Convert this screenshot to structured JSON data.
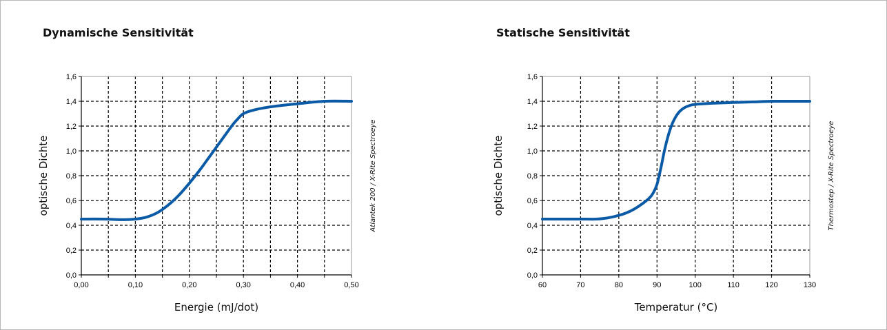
{
  "colors": {
    "line": "#0a5aa6",
    "grid": "#000000",
    "border": "#b9b9b9"
  },
  "chart_data": [
    {
      "type": "line",
      "title": "Dynamische Sensitivität",
      "xlabel": "Energie (mJ/dot)",
      "ylabel": "optische Dichte",
      "side_note": "Atlantek 200 / X-Rite Spectroeye",
      "xlim": [
        0,
        0.5
      ],
      "ylim": [
        0,
        1.6
      ],
      "xticks": [
        0,
        0.05,
        0.1,
        0.15,
        0.2,
        0.25,
        0.3,
        0.35,
        0.4,
        0.45,
        0.5
      ],
      "xtick_labels": [
        "0,00",
        "",
        "0,10",
        "",
        "0,20",
        "",
        "0,30",
        "",
        "0,40",
        "",
        "0,50"
      ],
      "yticks": [
        0,
        0.2,
        0.4,
        0.6,
        0.8,
        1.0,
        1.2,
        1.4,
        1.6
      ],
      "ytick_labels": [
        "0,0",
        "0,2",
        "0,4",
        "0,6",
        "0,8",
        "1,0",
        "1,2",
        "1,4",
        "1,6"
      ],
      "grid": true,
      "series": [
        {
          "x": [
            0.0,
            0.04,
            0.08,
            0.1,
            0.12,
            0.14,
            0.16,
            0.18,
            0.2,
            0.22,
            0.24,
            0.26,
            0.28,
            0.29,
            0.3,
            0.32,
            0.35,
            0.4,
            0.45,
            0.5
          ],
          "y": [
            0.45,
            0.45,
            0.445,
            0.45,
            0.465,
            0.5,
            0.56,
            0.64,
            0.74,
            0.85,
            0.97,
            1.09,
            1.21,
            1.26,
            1.3,
            1.33,
            1.355,
            1.38,
            1.4,
            1.4
          ]
        }
      ]
    },
    {
      "type": "line",
      "title": "Statische Sensitivität",
      "xlabel": "Temperatur (°C)",
      "ylabel": "optische Dichte",
      "side_note": "Thermostep / X-Rite Spectroeye",
      "xlim": [
        60,
        130
      ],
      "ylim": [
        0,
        1.6
      ],
      "xticks": [
        60,
        70,
        80,
        90,
        100,
        110,
        120,
        130
      ],
      "xtick_labels": [
        "60",
        "70",
        "80",
        "90",
        "100",
        "110",
        "120",
        "130"
      ],
      "yticks": [
        0,
        0.2,
        0.4,
        0.6,
        0.8,
        1.0,
        1.2,
        1.4,
        1.6
      ],
      "ytick_labels": [
        "0,0",
        "0,2",
        "0,4",
        "0,6",
        "0,8",
        "1,0",
        "1,2",
        "1,4",
        "1,6"
      ],
      "grid": true,
      "series": [
        {
          "x": [
            60,
            65,
            70,
            74,
            76,
            78,
            80,
            82,
            84,
            86,
            88,
            89,
            90,
            91,
            92,
            93,
            94,
            95,
            96,
            97,
            98,
            99,
            100,
            102,
            105,
            110,
            115,
            120,
            125,
            130
          ],
          "y": [
            0.45,
            0.45,
            0.45,
            0.45,
            0.455,
            0.465,
            0.48,
            0.5,
            0.53,
            0.57,
            0.62,
            0.66,
            0.73,
            0.86,
            1.01,
            1.13,
            1.22,
            1.28,
            1.32,
            1.345,
            1.36,
            1.37,
            1.375,
            1.38,
            1.385,
            1.39,
            1.395,
            1.4,
            1.4,
            1.4
          ]
        }
      ]
    }
  ]
}
